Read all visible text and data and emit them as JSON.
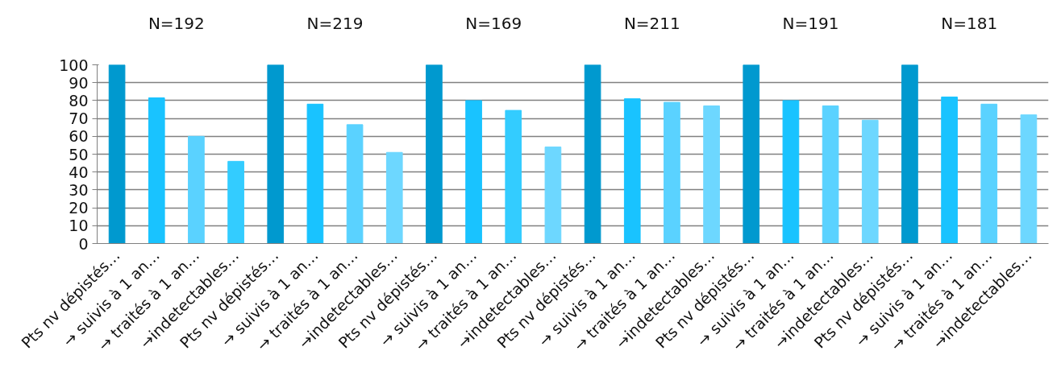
{
  "chart_data": {
    "type": "bar",
    "categories": [
      "Pts nv dépistés…",
      "→ suivis à 1 an…",
      "→ traités à 1 an…",
      "→indetectables…",
      "Pts nv dépistés…",
      "→ suivis à 1 an…",
      "→ traités à 1 an…",
      "→indetectables…",
      "Pts nv dépistés…",
      "→ suivis à 1 an…",
      "→ traités à 1 an…",
      "→indetectables…",
      "Pts nv dépistés…",
      "→ suivis à 1 an…",
      "→ traités à 1 an…",
      "→indetectables…",
      "Pts nv dépistés…",
      "→ suivis à 1 an…",
      "→ traités à 1 an…",
      "→indetectables…",
      "Pts nv dépistés…",
      "→ suivis à 1 an…",
      "→ traités à 1 an…",
      "→indetectables…"
    ],
    "values": [
      100,
      81.5,
      60,
      46,
      100,
      78,
      66.5,
      51,
      100,
      80,
      74.5,
      54,
      100,
      81,
      79,
      77,
      100,
      80,
      77,
      69,
      100,
      82,
      78,
      72
    ],
    "colors": [
      "#0099cf",
      "#19c3ff",
      "#5ad2ff",
      "#33ccff",
      "#0099cf",
      "#19c3ff",
      "#5ad2ff",
      "#6dd7ff",
      "#0099cf",
      "#19c3ff",
      "#33ccff",
      "#6dd7ff",
      "#0099cf",
      "#19c3ff",
      "#5ad2ff",
      "#6dd7ff",
      "#0099cf",
      "#19c3ff",
      "#5ad2ff",
      "#6dd7ff",
      "#0099cf",
      "#19c3ff",
      "#5ad2ff",
      "#6dd7ff"
    ],
    "annotations": [
      "N=192",
      "N=219",
      "N=169",
      "N=211",
      "N=191",
      "N=181"
    ],
    "ylim": [
      0,
      100
    ],
    "yticks": [
      0,
      10,
      20,
      30,
      40,
      50,
      60,
      70,
      80,
      90,
      100
    ],
    "grid": "y"
  }
}
